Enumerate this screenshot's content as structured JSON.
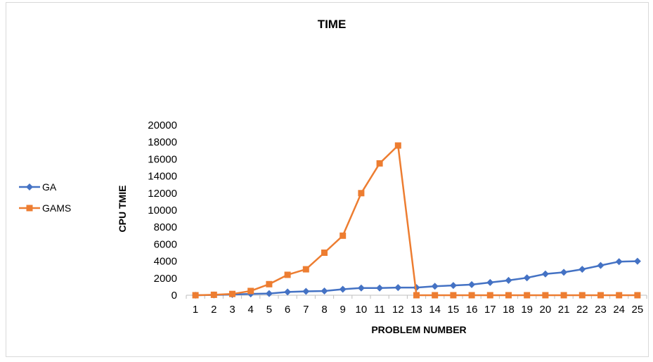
{
  "chart_data": {
    "type": "line",
    "title": "TIME",
    "xlabel": "PROBLEM NUMBER",
    "ylabel": "CPU TMIE",
    "categories": [
      "1",
      "2",
      "3",
      "4",
      "5",
      "6",
      "7",
      "8",
      "9",
      "10",
      "11",
      "12",
      "13",
      "14",
      "15",
      "16",
      "17",
      "18",
      "19",
      "20",
      "21",
      "22",
      "23",
      "24",
      "25"
    ],
    "ylim": [
      0,
      20000
    ],
    "yticks": [
      "0",
      "2000",
      "4000",
      "6000",
      "8000",
      "10000",
      "12000",
      "14000",
      "16000",
      "18000",
      "20000"
    ],
    "grid": false,
    "legend_position": "left",
    "series": [
      {
        "name": "GA",
        "color": "#4472c4",
        "marker": "diamond",
        "values": [
          0,
          30,
          80,
          150,
          200,
          380,
          450,
          500,
          700,
          850,
          850,
          900,
          900,
          1050,
          1150,
          1250,
          1500,
          1750,
          2050,
          2500,
          2700,
          3050,
          3500,
          3950,
          4000
        ]
      },
      {
        "name": "GAMS",
        "color": "#ed7d31",
        "marker": "square",
        "values": [
          0,
          50,
          150,
          500,
          1300,
          2400,
          3050,
          5000,
          7000,
          12000,
          15500,
          17600,
          0,
          0,
          0,
          0,
          0,
          0,
          0,
          0,
          0,
          0,
          0,
          0,
          0
        ]
      }
    ]
  }
}
